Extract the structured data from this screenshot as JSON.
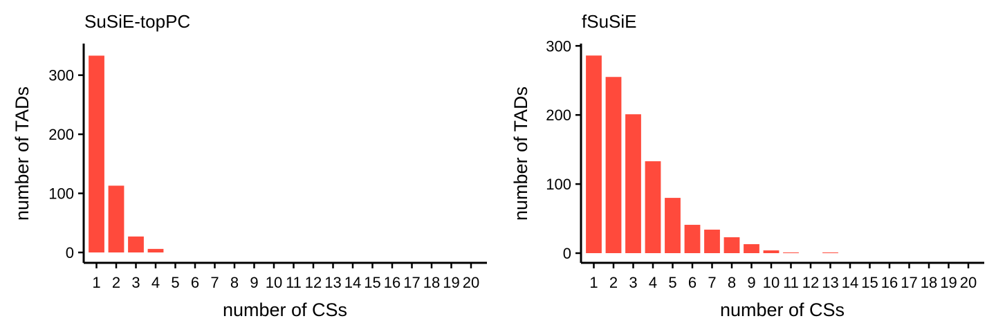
{
  "chart_data": [
    {
      "type": "bar",
      "title": "SuSiE-topPC",
      "xlabel": "number of CSs",
      "ylabel": "number of TADs",
      "categories": [
        "1",
        "2",
        "3",
        "4",
        "5",
        "6",
        "7",
        "8",
        "9",
        "10",
        "11",
        "12",
        "13",
        "14",
        "15",
        "16",
        "17",
        "18",
        "19",
        "20"
      ],
      "values": [
        333,
        113,
        27,
        6,
        0,
        0,
        0,
        0,
        0,
        0,
        0,
        0,
        0,
        0,
        0,
        0,
        0,
        0,
        0,
        0
      ],
      "yticks": [
        0,
        100,
        200,
        300
      ],
      "ylim": [
        0,
        350
      ],
      "bar_color": "#ff4a3c",
      "grid": false,
      "legend": "none"
    },
    {
      "type": "bar",
      "title": "fSuSiE",
      "xlabel": "number of CSs",
      "ylabel": "number of TADs",
      "categories": [
        "1",
        "2",
        "3",
        "4",
        "5",
        "6",
        "7",
        "8",
        "9",
        "10",
        "11",
        "12",
        "13",
        "14",
        "15",
        "16",
        "17",
        "18",
        "19",
        "20"
      ],
      "values": [
        286,
        255,
        201,
        133,
        80,
        41,
        34,
        23,
        13,
        4,
        1,
        0,
        1,
        0,
        0,
        0,
        0,
        0,
        0,
        0
      ],
      "yticks": [
        0,
        100,
        200,
        300
      ],
      "ylim": [
        0,
        302
      ],
      "bar_color": "#ff4a3c",
      "grid": false,
      "legend": "none"
    }
  ]
}
